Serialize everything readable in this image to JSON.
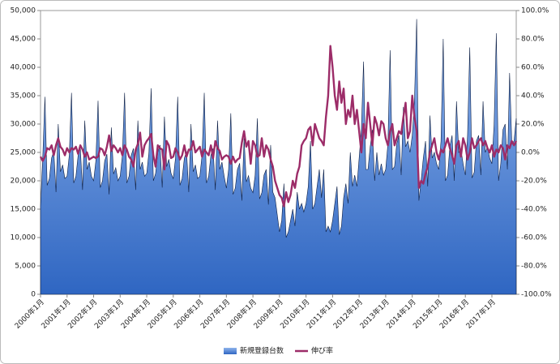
{
  "chart_data": {
    "type": "area-line",
    "categories": [
      "2000年1月",
      null,
      null,
      null,
      null,
      null,
      null,
      null,
      null,
      null,
      null,
      null,
      "2001年1月",
      null,
      null,
      null,
      null,
      null,
      null,
      null,
      null,
      null,
      null,
      null,
      "2002年1月",
      null,
      null,
      null,
      null,
      null,
      null,
      null,
      null,
      null,
      null,
      null,
      "2003年1月",
      null,
      null,
      null,
      null,
      null,
      null,
      null,
      null,
      null,
      null,
      null,
      "2004年1月",
      null,
      null,
      null,
      null,
      null,
      null,
      null,
      null,
      null,
      null,
      null,
      "2005年1月",
      null,
      null,
      null,
      null,
      null,
      null,
      null,
      null,
      null,
      null,
      null,
      "2006年1月",
      null,
      null,
      null,
      null,
      null,
      null,
      null,
      null,
      null,
      null,
      null,
      "2007年1月",
      null,
      null,
      null,
      null,
      null,
      null,
      null,
      null,
      null,
      null,
      null,
      "2008年1月",
      null,
      null,
      null,
      null,
      null,
      null,
      null,
      null,
      null,
      null,
      null,
      "2009年1月",
      null,
      null,
      null,
      null,
      null,
      null,
      null,
      null,
      null,
      null,
      null,
      "2010年1月",
      null,
      null,
      null,
      null,
      null,
      null,
      null,
      null,
      null,
      null,
      null,
      "2011年1月",
      null,
      null,
      null,
      null,
      null,
      null,
      null,
      null,
      null,
      null,
      null,
      "2012年1月",
      null,
      null,
      null,
      null,
      null,
      null,
      null,
      null,
      null,
      null,
      null,
      "2013年1月",
      null,
      null,
      null,
      null,
      null,
      null,
      null,
      null,
      null,
      null,
      null,
      "2014年1月",
      null,
      null,
      null,
      null,
      null,
      null,
      null,
      null,
      null,
      null,
      null,
      "2015年1月",
      null,
      null,
      null,
      null,
      null,
      null,
      null,
      null,
      null,
      null,
      null,
      "2016年1月",
      null,
      null,
      null,
      null,
      null,
      null,
      null,
      null,
      null,
      null,
      null,
      "2017年1月",
      null,
      null,
      null,
      null,
      null,
      null,
      null,
      null,
      null,
      null,
      null
    ],
    "series": [
      {
        "name": "新規登録台数",
        "color": "#3d72c9",
        "values": [
          15500,
          24000,
          34800,
          19200,
          20400,
          24000,
          25200,
          18000,
          30000,
          21600,
          22800,
          20400,
          20800,
          24500,
          35500,
          19600,
          20800,
          24500,
          25700,
          18400,
          30600,
          22000,
          23300,
          20800,
          20000,
          23500,
          34100,
          18800,
          20000,
          23500,
          24700,
          17600,
          29400,
          21200,
          22300,
          20000,
          20800,
          24500,
          35500,
          19600,
          20800,
          24500,
          25700,
          18400,
          30600,
          22000,
          23300,
          20800,
          21300,
          25000,
          36300,
          20000,
          21300,
          25000,
          26300,
          18800,
          31300,
          22500,
          23800,
          21300,
          20400,
          24000,
          34800,
          19200,
          20400,
          24000,
          25200,
          18000,
          30000,
          21600,
          22800,
          20400,
          20800,
          24500,
          35500,
          19600,
          20800,
          24500,
          25700,
          18400,
          30600,
          22000,
          23300,
          20800,
          18700,
          22000,
          31900,
          17600,
          18700,
          22000,
          23100,
          16500,
          27500,
          19800,
          20900,
          18700,
          17900,
          21000,
          31000,
          16800,
          17900,
          21000,
          22000,
          15800,
          26300,
          18000,
          17000,
          14000,
          11000,
          13000,
          19500,
          10000,
          11000,
          13000,
          15000,
          12000,
          18000,
          15000,
          16000,
          14500,
          16000,
          19000,
          27000,
          15000,
          16000,
          19000,
          22000,
          17000,
          22000,
          11000,
          12000,
          11000,
          13000,
          16000,
          19000,
          10500,
          12000,
          17000,
          19500,
          16000,
          25000,
          19000,
          21000,
          19000,
          24000,
          29000,
          41000,
          22000,
          22000,
          26000,
          29000,
          20000,
          25000,
          21000,
          23000,
          21000,
          22000,
          26500,
          43000,
          22000,
          22500,
          26500,
          28000,
          21000,
          33000,
          26000,
          27000,
          25000,
          28000,
          34000,
          48500,
          16500,
          20000,
          24000,
          27000,
          19000,
          31500,
          24000,
          25000,
          23000,
          22000,
          27000,
          45000,
          20000,
          21000,
          26000,
          28000,
          20000,
          34000,
          25000,
          25500,
          23000,
          21000,
          28000,
          43500,
          20500,
          21500,
          27000,
          28000,
          21000,
          34000,
          25000,
          26000,
          24000,
          23000,
          30000,
          46000,
          20000,
          23000,
          29000,
          30000,
          22000,
          39000,
          26500,
          27000,
          31000
        ]
      },
      {
        "name": "伸び率",
        "color": "#9c2c68",
        "axis": "y2",
        "values": [
          -3,
          -6,
          -3,
          3,
          2,
          5,
          -2,
          5,
          10,
          4,
          2,
          -2,
          3,
          0,
          3,
          2,
          4,
          -1,
          5,
          2,
          -3,
          0,
          -5,
          -4,
          -3,
          -4,
          -3,
          3,
          2,
          -2,
          4,
          12,
          1,
          5,
          3,
          0,
          3,
          -2,
          5,
          2,
          -3,
          -5,
          -10,
          2,
          6,
          14,
          -3,
          5,
          8,
          10,
          13,
          -2,
          -10,
          5,
          3,
          2,
          -12,
          8,
          5,
          -4,
          -3,
          3,
          0,
          -5,
          -2,
          5,
          -3,
          2,
          2,
          8,
          0,
          2,
          4,
          -3,
          2,
          0,
          -2,
          5,
          -4,
          8,
          3,
          1,
          -5,
          -3,
          -2,
          -3,
          -8,
          -3,
          -7,
          -5,
          -4,
          7,
          15,
          4,
          8,
          -8,
          8,
          5,
          -3,
          -2,
          10,
          -3,
          5,
          2,
          -5,
          -10,
          -20,
          -25,
          -30,
          -32,
          -38,
          -28,
          -35,
          -30,
          -20,
          -25,
          -15,
          -10,
          5,
          8,
          10,
          16,
          18,
          5,
          20,
          15,
          10,
          8,
          5,
          25,
          40,
          75,
          60,
          40,
          30,
          50,
          35,
          45,
          20,
          30,
          25,
          40,
          20,
          30,
          15,
          0,
          20,
          10,
          35,
          20,
          5,
          25,
          20,
          12,
          22,
          20,
          10,
          5,
          15,
          20,
          5,
          10,
          15,
          13,
          25,
          35,
          10,
          15,
          40,
          25,
          15,
          -25,
          -20,
          -22,
          -15,
          -10,
          0,
          5,
          10,
          0,
          -5,
          2,
          0,
          5,
          10,
          3,
          -2,
          -8,
          5,
          8,
          -3,
          10,
          5,
          -5,
          0,
          10,
          3,
          5,
          8,
          10,
          5,
          8,
          3,
          0,
          5,
          -3,
          2,
          0,
          5,
          3,
          -5,
          5,
          3,
          8,
          5,
          8
        ]
      }
    ],
    "ylim": [
      0,
      50000
    ],
    "yticks": [
      0,
      {
        "value": 5000,
        "label": "5,000"
      },
      {
        "value": 10000,
        "label": "10,000"
      },
      {
        "value": 15000,
        "label": "15,000"
      },
      {
        "value": 20000,
        "label": "20,000"
      },
      {
        "value": 25000,
        "label": "25,000"
      },
      {
        "value": 30000,
        "label": "30,000"
      },
      {
        "value": 35000,
        "label": "35,000"
      },
      {
        "value": 40000,
        "label": "40,000"
      },
      {
        "value": 45000,
        "label": "45,000"
      },
      {
        "value": 50000,
        "label": "50,000"
      }
    ],
    "y2lim": [
      -100,
      100
    ],
    "y2ticks": [
      {
        "value": -100,
        "label": "-100.0%"
      },
      {
        "value": -80,
        "label": "-80.0%"
      },
      {
        "value": -60,
        "label": "-60.0%"
      },
      {
        "value": -40,
        "label": "-40.0%"
      },
      {
        "value": -20,
        "label": "-20.0%"
      },
      {
        "value": 0,
        "label": "0.0%"
      },
      {
        "value": 20,
        "label": "20.0%"
      },
      {
        "value": 40,
        "label": "40.0%"
      },
      {
        "value": 60,
        "label": "60.0%"
      },
      {
        "value": 80,
        "label": "80.0%"
      },
      {
        "value": 100,
        "label": "100.0%"
      }
    ],
    "legend": "bottom"
  }
}
